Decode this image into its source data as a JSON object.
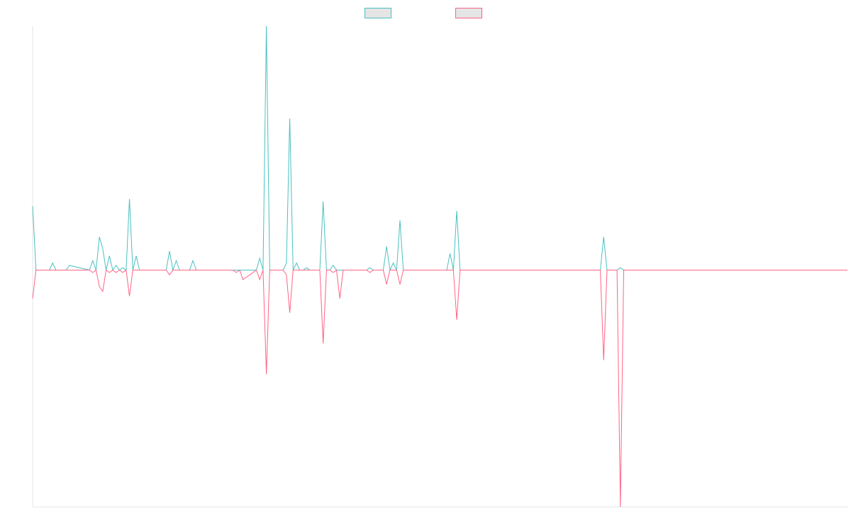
{
  "chart_data": {
    "type": "line",
    "title": "",
    "xlabel": "",
    "ylabel": "",
    "grid": false,
    "legend_position": "top",
    "y_baseline": 0,
    "ylim": [
      -100,
      103
    ],
    "series": [
      {
        "name": "",
        "color": "#4bc0c0",
        "direction": "positive",
        "points": [
          [
            0,
            27
          ],
          [
            1,
            0
          ],
          [
            2,
            0
          ],
          [
            3,
            0
          ],
          [
            4,
            0
          ],
          [
            5,
            0
          ],
          [
            6,
            3
          ],
          [
            7,
            0
          ],
          [
            8,
            0
          ],
          [
            9,
            0
          ],
          [
            10,
            0
          ],
          [
            11,
            2
          ],
          [
            17,
            0
          ],
          [
            18,
            4
          ],
          [
            19,
            0
          ],
          [
            20,
            14
          ],
          [
            21,
            9
          ],
          [
            22,
            0
          ],
          [
            23,
            6
          ],
          [
            24,
            0
          ],
          [
            25,
            2
          ],
          [
            26,
            0
          ],
          [
            27,
            1
          ],
          [
            28,
            0
          ],
          [
            29,
            30
          ],
          [
            30,
            0
          ],
          [
            31,
            6
          ],
          [
            32,
            0
          ],
          [
            40,
            0
          ],
          [
            41,
            8
          ],
          [
            42,
            0
          ],
          [
            43,
            4
          ],
          [
            44,
            0
          ],
          [
            47,
            0
          ],
          [
            48,
            4
          ],
          [
            49,
            0
          ],
          [
            60,
            0
          ],
          [
            61,
            0
          ],
          [
            62,
            0
          ],
          [
            63,
            0
          ],
          [
            67,
            0
          ],
          [
            68,
            5
          ],
          [
            69,
            0
          ],
          [
            70,
            103
          ],
          [
            71,
            0
          ],
          [
            72,
            0
          ],
          [
            73,
            0
          ],
          [
            74,
            0
          ],
          [
            75,
            0
          ],
          [
            76,
            3
          ],
          [
            77,
            64
          ],
          [
            78,
            0
          ],
          [
            79,
            3
          ],
          [
            80,
            0
          ],
          [
            81,
            0
          ],
          [
            82,
            1
          ],
          [
            83,
            0
          ],
          [
            86,
            0
          ],
          [
            87,
            29
          ],
          [
            88,
            0
          ],
          [
            89,
            0
          ],
          [
            90,
            2
          ],
          [
            91,
            0
          ],
          [
            92,
            0
          ],
          [
            93,
            0
          ],
          [
            94,
            0
          ],
          [
            95,
            0
          ],
          [
            96,
            0
          ],
          [
            97,
            0
          ],
          [
            98,
            0
          ],
          [
            99,
            0
          ],
          [
            100,
            0
          ],
          [
            101,
            1
          ],
          [
            102,
            0
          ],
          [
            103,
            0
          ],
          [
            105,
            0
          ],
          [
            106,
            10
          ],
          [
            107,
            0
          ],
          [
            108,
            3
          ],
          [
            109,
            0
          ],
          [
            110,
            21
          ],
          [
            111,
            0
          ],
          [
            124,
            0
          ],
          [
            125,
            7
          ],
          [
            126,
            0
          ],
          [
            127,
            25
          ],
          [
            128,
            0
          ],
          [
            170,
            0
          ],
          [
            171,
            14
          ],
          [
            172,
            0
          ],
          [
            175,
            0
          ],
          [
            176,
            1
          ],
          [
            177,
            0
          ],
          [
            244,
            0
          ]
        ]
      },
      {
        "name": "",
        "color": "#ff6384",
        "direction": "negative",
        "points": [
          [
            0,
            -12
          ],
          [
            1,
            0
          ],
          [
            2,
            0
          ],
          [
            3,
            0
          ],
          [
            4,
            0
          ],
          [
            5,
            0
          ],
          [
            6,
            0
          ],
          [
            7,
            0
          ],
          [
            8,
            0
          ],
          [
            9,
            0
          ],
          [
            10,
            0
          ],
          [
            11,
            0
          ],
          [
            17,
            0
          ],
          [
            18,
            -1
          ],
          [
            19,
            0
          ],
          [
            20,
            -7
          ],
          [
            21,
            -9
          ],
          [
            22,
            0
          ],
          [
            23,
            -1
          ],
          [
            24,
            0
          ],
          [
            25,
            -1
          ],
          [
            26,
            0
          ],
          [
            27,
            -1
          ],
          [
            28,
            0
          ],
          [
            29,
            -11
          ],
          [
            30,
            0
          ],
          [
            31,
            0
          ],
          [
            32,
            0
          ],
          [
            40,
            0
          ],
          [
            41,
            -2
          ],
          [
            42,
            0
          ],
          [
            43,
            0
          ],
          [
            44,
            0
          ],
          [
            47,
            0
          ],
          [
            48,
            0
          ],
          [
            49,
            0
          ],
          [
            60,
            0
          ],
          [
            61,
            -1
          ],
          [
            62,
            0
          ],
          [
            63,
            -4
          ],
          [
            67,
            0
          ],
          [
            68,
            -4
          ],
          [
            69,
            0
          ],
          [
            70,
            -44
          ],
          [
            71,
            0
          ],
          [
            72,
            0
          ],
          [
            73,
            0
          ],
          [
            74,
            0
          ],
          [
            75,
            0
          ],
          [
            76,
            -2
          ],
          [
            77,
            -18
          ],
          [
            78,
            0
          ],
          [
            79,
            0
          ],
          [
            80,
            0
          ],
          [
            81,
            0
          ],
          [
            82,
            0
          ],
          [
            83,
            0
          ],
          [
            86,
            0
          ],
          [
            87,
            -31
          ],
          [
            88,
            0
          ],
          [
            89,
            0
          ],
          [
            90,
            -1
          ],
          [
            91,
            0
          ],
          [
            92,
            -12
          ],
          [
            93,
            0
          ],
          [
            94,
            0
          ],
          [
            95,
            0
          ],
          [
            96,
            0
          ],
          [
            97,
            0
          ],
          [
            98,
            0
          ],
          [
            99,
            0
          ],
          [
            100,
            0
          ],
          [
            101,
            -1
          ],
          [
            102,
            0
          ],
          [
            103,
            0
          ],
          [
            105,
            0
          ],
          [
            106,
            -6
          ],
          [
            107,
            0
          ],
          [
            108,
            0
          ],
          [
            109,
            0
          ],
          [
            110,
            -6
          ],
          [
            111,
            0
          ],
          [
            124,
            0
          ],
          [
            125,
            0
          ],
          [
            126,
            0
          ],
          [
            127,
            -21
          ],
          [
            128,
            0
          ],
          [
            170,
            0
          ],
          [
            171,
            -38
          ],
          [
            172,
            0
          ],
          [
            175,
            0
          ],
          [
            176,
            -100
          ],
          [
            177,
            0
          ],
          [
            244,
            0
          ]
        ]
      }
    ]
  }
}
